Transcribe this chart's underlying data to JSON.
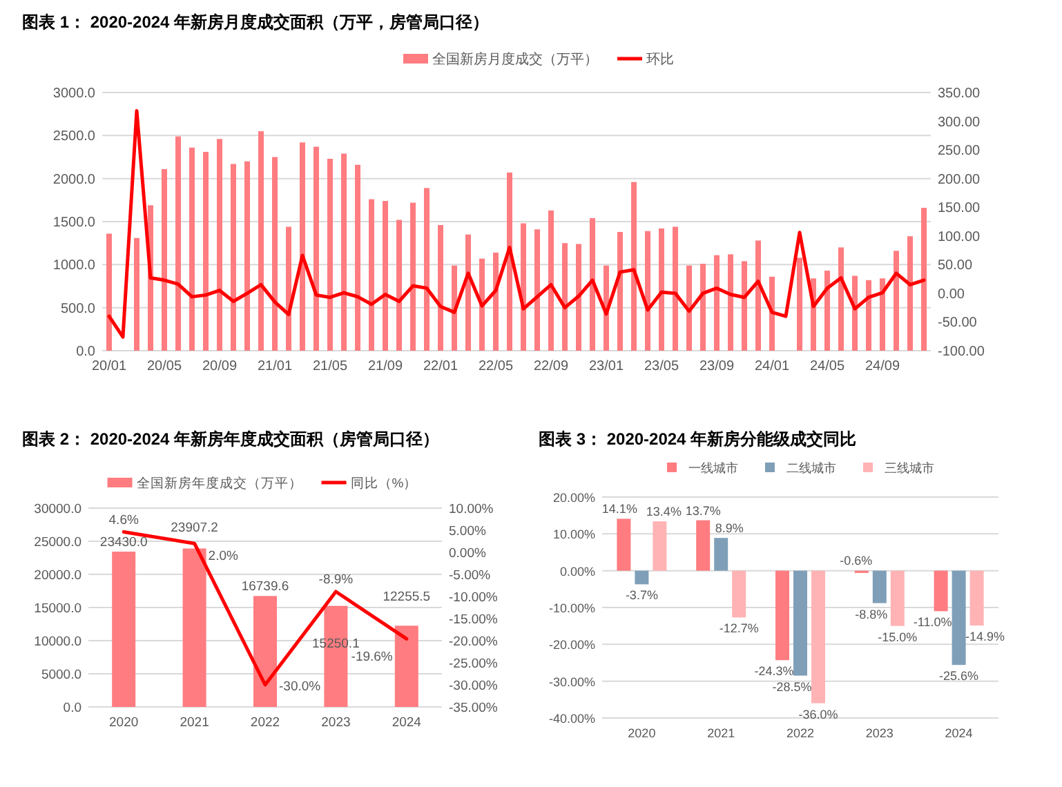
{
  "chart_data": [
    {
      "type": "bar",
      "title": "图表 1： 2020-2024 年新房月度成交面积（万平，房管局口径）",
      "categories": [
        "20/01",
        null,
        null,
        null,
        "20/05",
        null,
        null,
        null,
        "20/09",
        null,
        null,
        null,
        "21/01",
        null,
        null,
        null,
        "21/05",
        null,
        null,
        null,
        "21/09",
        null,
        null,
        null,
        "22/01",
        null,
        null,
        null,
        "22/05",
        null,
        null,
        null,
        "22/09",
        null,
        null,
        null,
        "23/01",
        null,
        null,
        null,
        "23/05",
        null,
        null,
        null,
        "23/09",
        null,
        null,
        null,
        "24/01",
        null,
        null,
        null,
        "24/05",
        null,
        null,
        null,
        "24/09",
        null,
        null,
        null
      ],
      "series": [
        {
          "name": "全国新房月度成交（万平）",
          "color": "#ff7c80",
          "values": [
            1360,
            null,
            1310,
            1690,
            2110,
            2490,
            2360,
            2310,
            2460,
            2170,
            2200,
            2550,
            2250,
            1440,
            2420,
            2370,
            2230,
            2290,
            2160,
            1760,
            1740,
            1520,
            1720,
            1890,
            1460,
            990,
            1350,
            1070,
            1140,
            2070,
            1480,
            1410,
            1630,
            1250,
            1240,
            1540,
            990,
            1380,
            1960,
            1390,
            1420,
            1440,
            990,
            1010,
            1110,
            1120,
            1040,
            1280,
            860,
            null,
            1080,
            840,
            930,
            1200,
            870,
            820,
            840,
            1160,
            1330,
            1660
          ]
        },
        {
          "name": "环比",
          "type": "line",
          "axis": "y2",
          "color": "#ff0000",
          "values": [
            -40,
            -76,
            318,
            27,
            23,
            16,
            -6,
            -3,
            5,
            -14,
            0,
            15,
            -15,
            -37,
            66,
            -3,
            -7,
            1,
            -6,
            -19,
            -2,
            -14,
            13,
            9,
            -23,
            -33,
            35,
            -22,
            5,
            80,
            -27,
            -6,
            15,
            -25,
            -5,
            23,
            -36,
            37,
            41,
            -29,
            2,
            0,
            -31,
            0,
            9,
            -2,
            -7,
            21,
            -33,
            -40,
            106,
            -23,
            9,
            27,
            -27,
            -7,
            1,
            35,
            15,
            23
          ]
        }
      ],
      "ylim": [
        0,
        3000
      ],
      "yticks": [
        {
          "value": 0,
          "label": "0.0"
        },
        {
          "value": 500,
          "label": "500.0"
        },
        {
          "value": 1000,
          "label": "1000.0"
        },
        {
          "value": 1500,
          "label": "1500.0"
        },
        {
          "value": 2000,
          "label": "2000.0"
        },
        {
          "value": 2500,
          "label": "2500.0"
        },
        {
          "value": 3000,
          "label": "3000.0"
        }
      ],
      "y2lim": [
        -100,
        350
      ],
      "y2ticks": [
        {
          "value": -100,
          "label": "-100.00"
        },
        {
          "value": -50,
          "label": "-50.00"
        },
        {
          "value": 0,
          "label": "0.00"
        },
        {
          "value": 50,
          "label": "50.00"
        },
        {
          "value": 100,
          "label": "100.00"
        },
        {
          "value": 150,
          "label": "150.00"
        },
        {
          "value": 200,
          "label": "200.00"
        },
        {
          "value": 250,
          "label": "250.00"
        },
        {
          "value": 300,
          "label": "300.00"
        },
        {
          "value": 350,
          "label": "350.00"
        }
      ],
      "grid": "y",
      "legend": "top"
    },
    {
      "type": "bar",
      "title": "图表 2： 2020-2024 年新房年度成交面积（房管局口径）",
      "categories": [
        "2020",
        "2021",
        "2022",
        "2023",
        "2024"
      ],
      "series": [
        {
          "name": "全国新房年度成交（万平）",
          "color": "#ff7c80",
          "values": [
            23430.0,
            23907.2,
            16739.6,
            15250.1,
            12255.5
          ],
          "value_labels": [
            "23430.0",
            "23907.2",
            "16739.6",
            "15250.1",
            "12255.5"
          ]
        },
        {
          "name": "同比（%）",
          "type": "line",
          "axis": "y2",
          "color": "#ff0000",
          "values": [
            4.6,
            2.0,
            -30.0,
            -8.9,
            -19.6
          ],
          "value_labels": [
            "4.6%",
            "2.0%",
            "-30.0%",
            "-8.9%",
            "-19.6%"
          ]
        }
      ],
      "ylim": [
        0,
        30000
      ],
      "yticks": [
        {
          "value": 0,
          "label": "0.0"
        },
        {
          "value": 5000,
          "label": "5000.0"
        },
        {
          "value": 10000,
          "label": "10000.0"
        },
        {
          "value": 15000,
          "label": "15000.0"
        },
        {
          "value": 20000,
          "label": "20000.0"
        },
        {
          "value": 25000,
          "label": "25000.0"
        },
        {
          "value": 30000,
          "label": "30000.0"
        }
      ],
      "y2lim": [
        -35,
        10
      ],
      "y2ticks": [
        {
          "value": -35,
          "label": "-35.00%"
        },
        {
          "value": -30,
          "label": "-30.00%"
        },
        {
          "value": -25,
          "label": "-25.00%"
        },
        {
          "value": -20,
          "label": "-20.00%"
        },
        {
          "value": -15,
          "label": "-15.00%"
        },
        {
          "value": -10,
          "label": "-10.00%"
        },
        {
          "value": -5,
          "label": "-5.00%"
        },
        {
          "value": 0,
          "label": "0.00%"
        },
        {
          "value": 5,
          "label": "5.00%"
        },
        {
          "value": 10,
          "label": "10.00%"
        }
      ],
      "grid": "y",
      "legend": "top"
    },
    {
      "type": "bar",
      "title": "图表 3： 2020-2024 年新房分能级成交同比",
      "categories": [
        "2020",
        "2021",
        "2022",
        "2023",
        "2024"
      ],
      "series": [
        {
          "name": "一线城市",
          "color": "#ff7c80",
          "values": [
            14.1,
            13.7,
            -24.3,
            -0.6,
            -11.0
          ],
          "value_labels": [
            "14.1%",
            "13.7%",
            "-24.3%",
            "-0.6%",
            "-11.0%"
          ]
        },
        {
          "name": "二线城市",
          "color": "#7f9fb8",
          "values": [
            -3.7,
            8.9,
            -28.5,
            -8.8,
            -25.6
          ],
          "value_labels": [
            "-3.7%",
            "8.9%",
            "-28.5%",
            "-8.8%",
            "-25.6%"
          ]
        },
        {
          "name": "三线城市",
          "color": "#ffb3b5",
          "values": [
            13.4,
            -12.7,
            -36.0,
            -15.0,
            -14.9
          ],
          "value_labels": [
            "13.4%",
            "-12.7%",
            "-36.0%",
            "-15.0%",
            "-14.9%"
          ]
        }
      ],
      "ylim": [
        -40,
        20
      ],
      "yticks": [
        {
          "value": -40,
          "label": "-40.00%"
        },
        {
          "value": -30,
          "label": "-30.00%"
        },
        {
          "value": -20,
          "label": "-20.00%"
        },
        {
          "value": -10,
          "label": "-10.00%"
        },
        {
          "value": 0,
          "label": "0.00%"
        },
        {
          "value": 10,
          "label": "10.00%"
        },
        {
          "value": 20,
          "label": "20.00%"
        }
      ],
      "grid": "y",
      "legend": "top"
    }
  ]
}
